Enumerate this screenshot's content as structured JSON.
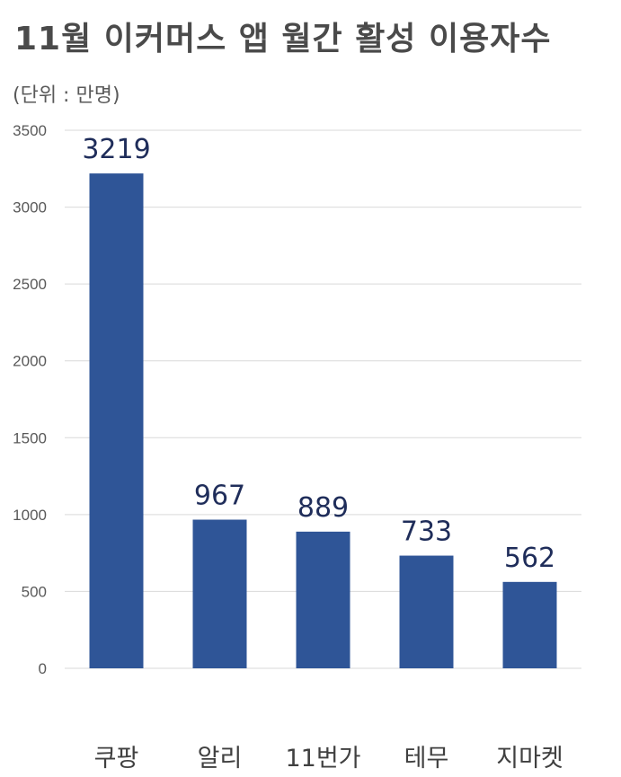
{
  "chart_data": {
    "type": "bar",
    "title": "11월 이커머스 앱 월간 활성 이용자수",
    "subtitle": "(단위 : 만명)",
    "categories": [
      "쿠팡",
      "알리",
      "11번가",
      "테무",
      "지마켓"
    ],
    "values": [
      3219,
      967,
      889,
      733,
      562
    ],
    "data_labels": [
      "3219",
      "967",
      "889",
      "733",
      "562"
    ],
    "ylim": [
      0,
      3500
    ],
    "yticks": [
      "0",
      "500",
      "1000",
      "1500",
      "2000",
      "2500",
      "3000",
      "3500"
    ],
    "grid": true,
    "legend": "none",
    "colors": {
      "bar": "#2f5597",
      "grid": "#d9d9d9",
      "label": "#1f2d5a"
    }
  }
}
